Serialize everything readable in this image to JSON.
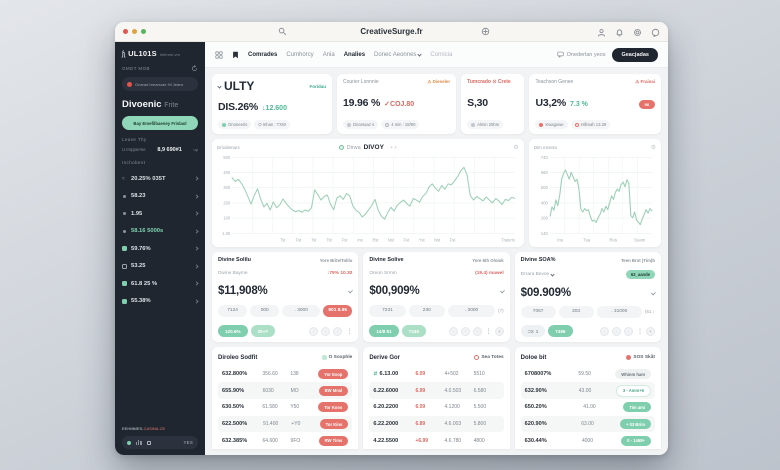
{
  "window": {
    "title": "CreativeSurge.fr"
  },
  "navbar": {
    "logo": "UL101S",
    "logo_mark": "ʃʅ",
    "logo_sub": "Inferme.vm",
    "items": [
      {
        "label": "Comrades",
        "active": true,
        "muted": false,
        "chevron": false
      },
      {
        "label": "Cumhorcy",
        "active": false,
        "muted": false,
        "chevron": false
      },
      {
        "label": "Ania",
        "active": false,
        "muted": false,
        "chevron": false
      },
      {
        "label": "Analies",
        "active": true,
        "muted": false,
        "chevron": false
      },
      {
        "label": "Donec Aeonnes",
        "active": false,
        "muted": false,
        "chevron": true
      },
      {
        "label": "Cornicia",
        "active": false,
        "muted": true,
        "chevron": false
      }
    ],
    "right_link": "Onederlan yeos",
    "cta": "Geacjadas"
  },
  "sidebar": {
    "section_label": "GMDT MOB",
    "notice": "Onarad hrearsrae Ht Jeans",
    "title": "Divoenic",
    "title_suffix": "Frite",
    "cta": "Bay Emefilbaeney Frislaol",
    "group1_label": "Lease Thy",
    "lease_key": "U Impperme",
    "lease_value": "8,9 690#1",
    "lease_unit": "up",
    "group2_label": "Inchobent",
    "items": [
      {
        "icon": "hash",
        "label": "20.25% 035T",
        "tone": "plain"
      },
      {
        "icon": "dot",
        "label": "58.23",
        "tone": "plain"
      },
      {
        "icon": "dot",
        "label": "1.95",
        "tone": "plain"
      },
      {
        "icon": "dot",
        "label": "58.16 5000s",
        "tone": "green"
      },
      {
        "icon": "square-green",
        "label": "59.76%",
        "tone": "plain"
      },
      {
        "icon": "square-outline",
        "label": "53.25",
        "tone": "plain"
      },
      {
        "icon": "square-green",
        "label": "61.8 25 %",
        "tone": "plain"
      },
      {
        "icon": "square-green",
        "label": "55.38%",
        "tone": "plain"
      }
    ],
    "footer_note": "EEHMMES-",
    "footer_note_red": "CASINA.CE",
    "footer_action": "YES"
  },
  "stats": [
    {
      "title": "ULTY",
      "title_style": "big",
      "link": "Foridau",
      "link_tone": "green",
      "value": "DIS.26%",
      "delta": "↓12.600",
      "delta_tone": "green",
      "badge": null,
      "flex": 1.22,
      "footers": [
        {
          "icon": "dot-green",
          "text": "Ononeeris"
        },
        {
          "icon": "none",
          "text": "O Inhan : TXW"
        }
      ]
    },
    {
      "title": "Courier Lonnnie",
      "title_style": "plain",
      "link": "⚠ Dieseler",
      "link_tone": "orange",
      "value": "19.96 %",
      "delta": "✓COJ.80",
      "delta_tone": "red",
      "badge": null,
      "flex": 1.21,
      "footers": [
        {
          "icon": "dot-gray",
          "text": "Dnarsaaz s"
        },
        {
          "icon": "clock",
          "text": "4 min : 18/90"
        }
      ]
    },
    {
      "title": "Tumcrado ⊙ Crete",
      "title_style": "red",
      "link": null,
      "link_tone": null,
      "value": "S,30",
      "delta": null,
      "delta_tone": null,
      "badge": null,
      "flex": 0.58,
      "footers": [
        {
          "icon": "dot-gray",
          "text": "Almin 25hm"
        }
      ]
    },
    {
      "title": "Teachson Genee",
      "title_style": "plain",
      "link": "⚠ Fraisai",
      "link_tone": "red",
      "value": "U3,2%",
      "delta": "7.3 %",
      "delta_tone": "green",
      "badge": "98",
      "flex": 1.35,
      "footers": [
        {
          "icon": "dot-red",
          "text": "Kwaguwe"
        },
        {
          "icon": "clock-red",
          "text": "Hillmah 13.29"
        }
      ]
    }
  ],
  "chart_data": [
    {
      "type": "line",
      "corner_label": "Drividenars",
      "title_prefix": "Dirwa",
      "title": "DIVOY",
      "title_dots": "· + +",
      "legend": "target-dot",
      "line_color": "#9bcfb5",
      "grid": true,
      "legend_position": "top-center",
      "ylim": [
        0,
        520
      ],
      "y_ticks": [
        "500",
        "400",
        "300",
        "200",
        "100",
        "1.00"
      ],
      "x_ticks": [
        "Tst",
        "Fst",
        "Tst",
        "Tst",
        "Fst",
        "Ins",
        "Rst",
        "Nst",
        "Fst",
        "Yst",
        "Nst",
        "Fst"
      ],
      "x_right_label": "Trateris",
      "values": [
        380,
        355,
        370,
        340,
        300,
        250,
        200,
        260,
        305,
        235,
        180,
        205,
        160,
        215,
        175,
        195,
        235,
        205,
        180,
        160,
        148,
        156,
        144,
        160,
        150,
        175,
        298,
        265,
        228,
        252,
        262,
        198,
        162,
        242,
        256,
        232,
        272,
        258,
        188,
        158,
        142,
        112,
        132,
        162,
        192,
        232,
        158,
        118,
        96,
        142,
        178,
        152,
        192,
        212,
        228,
        202,
        186,
        238,
        228,
        214,
        252,
        272,
        318,
        338,
        308,
        288,
        328,
        302,
        338,
        332,
        358,
        388,
        428,
        452,
        398,
        258,
        228,
        252,
        238,
        222,
        248,
        228,
        208,
        238,
        222,
        196,
        232,
        224,
        246,
        240
      ]
    },
    {
      "type": "line",
      "corner_label": "Dim ensera",
      "title_prefix": null,
      "title": null,
      "legend": null,
      "line_color": "#9bcfb5",
      "grid": true,
      "ylim": [
        100,
        760
      ],
      "y_ticks": [
        "740",
        "660",
        "500",
        "400",
        "100",
        "140"
      ],
      "x_ticks": [
        "Inu",
        "Tua",
        "Rus",
        "Suam"
      ],
      "x_right_label": null,
      "values": [
        250,
        330,
        300,
        390,
        340,
        430,
        570,
        620,
        650,
        610,
        570,
        630,
        590,
        550,
        570,
        490,
        310,
        285,
        315,
        295,
        305,
        245,
        205,
        215,
        195,
        235,
        265,
        315,
        285,
        335,
        305,
        365,
        425,
        395,
        455,
        485,
        465,
        525,
        545,
        505,
        565,
        535,
        255,
        235,
        285,
        215,
        195,
        175,
        225,
        265,
        305,
        275,
        315,
        295
      ]
    }
  ],
  "panels": [
    {
      "title": "Divine Solilu",
      "subtitle": "Yore Brite/Tolilu",
      "row_label": "Divine Bayme",
      "row_chevron": false,
      "row_value": "↓79% 10.30",
      "row_pill": null,
      "value": "$11,908%",
      "inputs": [
        "7124",
        "000",
        ". 3000"
      ],
      "input_extra": null,
      "danger": "901 8.95",
      "actions": [
        {
          "label": "120.6%",
          "style": "green"
        },
        {
          "label": "25+#",
          "style": "green-light"
        }
      ],
      "circles": 3,
      "trailing": [
        "more"
      ]
    },
    {
      "title": "Divine Solive",
      "subtitle": "Yore 6th Oloiok",
      "row_label": "Oreon Srmm",
      "row_chevron": false,
      "row_value": "(19.4) mawel",
      "row_pill": null,
      "value": "$00,909%",
      "inputs": [
        "7231",
        "230",
        ". 3000"
      ],
      "input_extra": "(7)",
      "danger": null,
      "actions": [
        {
          "label": "14/8 81",
          "style": "green"
        },
        {
          "label": "7249",
          "style": "green-light"
        }
      ],
      "circles": 3,
      "trailing": [
        "more",
        "plus"
      ]
    },
    {
      "title": "Divine SOA%",
      "subtitle": "Teen Brot (Tim)b",
      "row_label": "Drrara Bevoe",
      "row_chevron": true,
      "row_value": null,
      "row_pill": "62_aande",
      "value": "$09.909%",
      "inputs": [
        "7067",
        "303",
        ". 31000"
      ],
      "input_extra": "(61 ↑",
      "danger": null,
      "actions": [
        {
          "label": "=0: 1",
          "style": "gray"
        },
        {
          "label": "7496",
          "style": "green"
        }
      ],
      "circles": 3,
      "trailing": [
        "more",
        "plus"
      ]
    }
  ],
  "tables": [
    {
      "title": "Diroleo Sodfit",
      "link": "O Soxphle",
      "link_icon": "grid-green",
      "rows": [
        {
          "cells": [
            "632.800%",
            "356.60",
            "138"
          ],
          "pill": "Yor Exop",
          "pill_style": "red",
          "lead_icon": null
        },
        {
          "cells": [
            "655.90%",
            "6030",
            "MO"
          ],
          "pill": "BW Mnsl",
          "pill_style": "red",
          "lead_icon": null
        },
        {
          "cells": [
            "630.50%",
            "61.580",
            "Y50"
          ],
          "pill": "Tor Koos",
          "pill_style": "red",
          "lead_icon": null
        },
        {
          "cells": [
            "622.500%",
            "91.400",
            "+Y0"
          ],
          "pill": "Tor Kins",
          "pill_style": "red",
          "lead_icon": null
        },
        {
          "cells": [
            "632.385%",
            "64.600",
            "9FO"
          ],
          "pill": "RW Tims",
          "pill_style": "red",
          "lead_icon": null
        }
      ]
    },
    {
      "title": "Derive Gor",
      "link": "Sea Totes",
      "link_icon": "circle-red",
      "rows": [
        {
          "cells": [
            "6.13.00",
            "6.09",
            "4+502",
            "5510"
          ],
          "pill": null,
          "pill_style": null,
          "lead_icon": "swap-green"
        },
        {
          "cells": [
            "6.22.6000",
            "6.99",
            "4.0.503",
            "6.580"
          ],
          "pill": null,
          "pill_style": null,
          "lead_icon": null
        },
        {
          "cells": [
            "6.20.2200",
            "6.09",
            "4.1200",
            "5.500"
          ],
          "pill": null,
          "pill_style": null,
          "lead_icon": null
        },
        {
          "cells": [
            "6.22.2000",
            "6.89",
            "4.6.003",
            "5.800"
          ],
          "pill": null,
          "pill_style": null,
          "lead_icon": null
        },
        {
          "cells": [
            "4.22.5500",
            "+6.99",
            "4.6.780",
            "4800"
          ],
          "pill": null,
          "pill_style": null,
          "lead_icon": null
        }
      ]
    },
    {
      "title": "Doloe bit",
      "link": "SOS Skåt",
      "link_icon": "dot-red",
      "rows": [
        {
          "cells": [
            "6708007%",
            "59.50"
          ],
          "pill": "Whinm ham",
          "pill_style": "gray",
          "lead_icon": null
        },
        {
          "cells": [
            "632.90%",
            "43.00"
          ],
          "pill": "3 - Amm+6",
          "pill_style": "outline",
          "lead_icon": null
        },
        {
          "cells": [
            "650.20%",
            "41.00"
          ],
          "pill": "Tim ami",
          "pill_style": "green",
          "lead_icon": null
        },
        {
          "cells": [
            "620.90%",
            "63.00"
          ],
          "pill": "+ 03 Brim",
          "pill_style": "green",
          "lead_icon": null
        },
        {
          "cells": [
            "630.44%",
            "4000"
          ],
          "pill": "0 - 1468+",
          "pill_style": "green",
          "lead_icon": null
        }
      ]
    }
  ],
  "colors": {
    "accent_green": "#7fcfae",
    "accent_green_text": "#3fa98c",
    "danger": "#e5736b",
    "dark": "#20262f",
    "muted": "#9aa3ab",
    "chart_line": "#9bcfb5"
  }
}
